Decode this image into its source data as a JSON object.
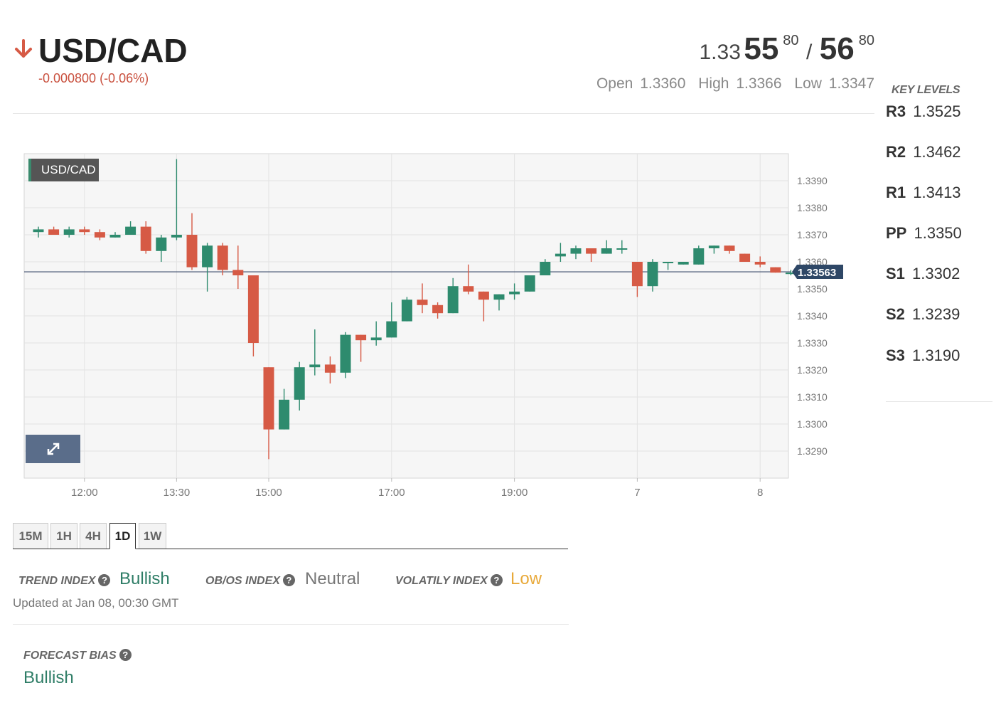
{
  "header": {
    "symbol": "USD/CAD",
    "change": "-0.000800 (-0.06%)",
    "direction": "down",
    "bid_prefix": "1.33",
    "bid_big": "55",
    "bid_pip": "80",
    "separator": "/",
    "ask_big": "56",
    "ask_pip": "80",
    "open_label": "Open",
    "open_value": "1.3360",
    "high_label": "High",
    "high_value": "1.3366",
    "low_label": "Low",
    "low_value": "1.3347"
  },
  "key_levels": {
    "title": "KEY LEVELS",
    "items": [
      {
        "name": "R3",
        "value": "1.3525"
      },
      {
        "name": "R2",
        "value": "1.3462"
      },
      {
        "name": "R1",
        "value": "1.3413"
      },
      {
        "name": "PP",
        "value": "1.3350"
      },
      {
        "name": "S1",
        "value": "1.3302"
      },
      {
        "name": "S2",
        "value": "1.3239"
      },
      {
        "name": "S3",
        "value": "1.3190"
      }
    ]
  },
  "chart_badge": "USD/CAD",
  "chart_data": {
    "type": "candlestick",
    "ylim": [
      1.328,
      1.34
    ],
    "yticks": [
      1.329,
      1.33,
      1.331,
      1.332,
      1.333,
      1.334,
      1.335,
      1.336,
      1.337,
      1.338,
      1.339
    ],
    "ytick_labels": [
      "1.3290",
      "1.3300",
      "1.3310",
      "1.3320",
      "1.3330",
      "1.3340",
      "1.3350",
      "1.3360",
      "1.3370",
      "1.3380",
      "1.3390"
    ],
    "xtick_labels": [
      "12:00",
      "13:30",
      "15:00",
      "17:00",
      "19:00",
      "7",
      "8"
    ],
    "xtick_index": [
      3,
      9,
      15,
      23,
      31,
      39,
      47
    ],
    "current_price": 1.33563,
    "current_label": "1.33563",
    "up_color": "#2e8b6e",
    "down_color": "#d65a45",
    "candles": [
      {
        "o": 1.3371,
        "h": 1.3373,
        "l": 1.3369,
        "c": 1.3372
      },
      {
        "o": 1.3372,
        "h": 1.3373,
        "l": 1.337,
        "c": 1.337
      },
      {
        "o": 1.337,
        "h": 1.3373,
        "l": 1.3369,
        "c": 1.3372
      },
      {
        "o": 1.3372,
        "h": 1.3373,
        "l": 1.337,
        "c": 1.3371
      },
      {
        "o": 1.3371,
        "h": 1.3372,
        "l": 1.3368,
        "c": 1.3369
      },
      {
        "o": 1.3369,
        "h": 1.3371,
        "l": 1.3369,
        "c": 1.337
      },
      {
        "o": 1.337,
        "h": 1.3375,
        "l": 1.337,
        "c": 1.3373
      },
      {
        "o": 1.3373,
        "h": 1.3375,
        "l": 1.3363,
        "c": 1.3364
      },
      {
        "o": 1.3364,
        "h": 1.337,
        "l": 1.336,
        "c": 1.3369
      },
      {
        "o": 1.3369,
        "h": 1.3398,
        "l": 1.3368,
        "c": 1.337
      },
      {
        "o": 1.337,
        "h": 1.3378,
        "l": 1.3357,
        "c": 1.3358
      },
      {
        "o": 1.3358,
        "h": 1.3367,
        "l": 1.3349,
        "c": 1.3366
      },
      {
        "o": 1.3366,
        "h": 1.3367,
        "l": 1.3355,
        "c": 1.3357
      },
      {
        "o": 1.3357,
        "h": 1.3366,
        "l": 1.335,
        "c": 1.3355
      },
      {
        "o": 1.3355,
        "h": 1.3355,
        "l": 1.3325,
        "c": 1.333
      },
      {
        "o": 1.3321,
        "h": 1.3321,
        "l": 1.3287,
        "c": 1.3298
      },
      {
        "o": 1.3298,
        "h": 1.3313,
        "l": 1.3298,
        "c": 1.3309
      },
      {
        "o": 1.3309,
        "h": 1.3323,
        "l": 1.3305,
        "c": 1.3321
      },
      {
        "o": 1.3321,
        "h": 1.3335,
        "l": 1.3318,
        "c": 1.3322
      },
      {
        "o": 1.3322,
        "h": 1.3325,
        "l": 1.3315,
        "c": 1.3319
      },
      {
        "o": 1.3319,
        "h": 1.3334,
        "l": 1.3317,
        "c": 1.3333
      },
      {
        "o": 1.3333,
        "h": 1.3333,
        "l": 1.3323,
        "c": 1.3331
      },
      {
        "o": 1.3331,
        "h": 1.3338,
        "l": 1.3329,
        "c": 1.3332
      },
      {
        "o": 1.3332,
        "h": 1.3345,
        "l": 1.3332,
        "c": 1.3338
      },
      {
        "o": 1.3338,
        "h": 1.3347,
        "l": 1.3338,
        "c": 1.3346
      },
      {
        "o": 1.3346,
        "h": 1.3352,
        "l": 1.3341,
        "c": 1.3344
      },
      {
        "o": 1.3344,
        "h": 1.3345,
        "l": 1.3339,
        "c": 1.3341
      },
      {
        "o": 1.3341,
        "h": 1.3354,
        "l": 1.3341,
        "c": 1.3351
      },
      {
        "o": 1.3351,
        "h": 1.3359,
        "l": 1.3348,
        "c": 1.3349
      },
      {
        "o": 1.3349,
        "h": 1.3349,
        "l": 1.3338,
        "c": 1.3346
      },
      {
        "o": 1.3346,
        "h": 1.3348,
        "l": 1.3342,
        "c": 1.3348
      },
      {
        "o": 1.3348,
        "h": 1.3352,
        "l": 1.3346,
        "c": 1.3349
      },
      {
        "o": 1.3349,
        "h": 1.3355,
        "l": 1.3349,
        "c": 1.3355
      },
      {
        "o": 1.3355,
        "h": 1.3361,
        "l": 1.3355,
        "c": 1.336
      },
      {
        "o": 1.3362,
        "h": 1.3367,
        "l": 1.336,
        "c": 1.3363
      },
      {
        "o": 1.3363,
        "h": 1.3366,
        "l": 1.3361,
        "c": 1.3365
      },
      {
        "o": 1.3365,
        "h": 1.3365,
        "l": 1.336,
        "c": 1.3363
      },
      {
        "o": 1.3363,
        "h": 1.3368,
        "l": 1.3363,
        "c": 1.3365
      },
      {
        "o": 1.3365,
        "h": 1.3368,
        "l": 1.3363,
        "c": 1.3365
      },
      {
        "o": 1.336,
        "h": 1.336,
        "l": 1.3347,
        "c": 1.3351
      },
      {
        "o": 1.3351,
        "h": 1.3361,
        "l": 1.3349,
        "c": 1.336
      },
      {
        "o": 1.336,
        "h": 1.336,
        "l": 1.3357,
        "c": 1.336
      },
      {
        "o": 1.3359,
        "h": 1.336,
        "l": 1.3359,
        "c": 1.336
      },
      {
        "o": 1.3359,
        "h": 1.3366,
        "l": 1.3359,
        "c": 1.3365
      },
      {
        "o": 1.3365,
        "h": 1.3366,
        "l": 1.3363,
        "c": 1.3366
      },
      {
        "o": 1.3366,
        "h": 1.3366,
        "l": 1.3363,
        "c": 1.3364
      },
      {
        "o": 1.3363,
        "h": 1.3363,
        "l": 1.336,
        "c": 1.336
      },
      {
        "o": 1.336,
        "h": 1.3362,
        "l": 1.3358,
        "c": 1.3359
      },
      {
        "o": 1.3358,
        "h": 1.3358,
        "l": 1.3356,
        "c": 1.3356
      },
      {
        "o": 1.3356,
        "h": 1.3357,
        "l": 1.3355,
        "c": 1.3356
      }
    ]
  },
  "timeframes": {
    "items": [
      "15M",
      "1H",
      "4H",
      "1D",
      "1W"
    ],
    "active": "1D"
  },
  "indexes": {
    "trend_label": "TREND INDEX",
    "trend_value": "Bullish",
    "obos_label": "OB/OS INDEX",
    "obos_value": "Neutral",
    "volatility_label": "VOLATILY INDEX",
    "volatility_value": "Low",
    "help_glyph": "?",
    "updated": "Updated at Jan 08, 00:30 GMT",
    "colors": {
      "bullish": "#2e7d66",
      "neutral": "#777777",
      "low": "#e8a93a"
    }
  },
  "forecast": {
    "label": "FORECAST BIAS",
    "value": "Bullish"
  }
}
